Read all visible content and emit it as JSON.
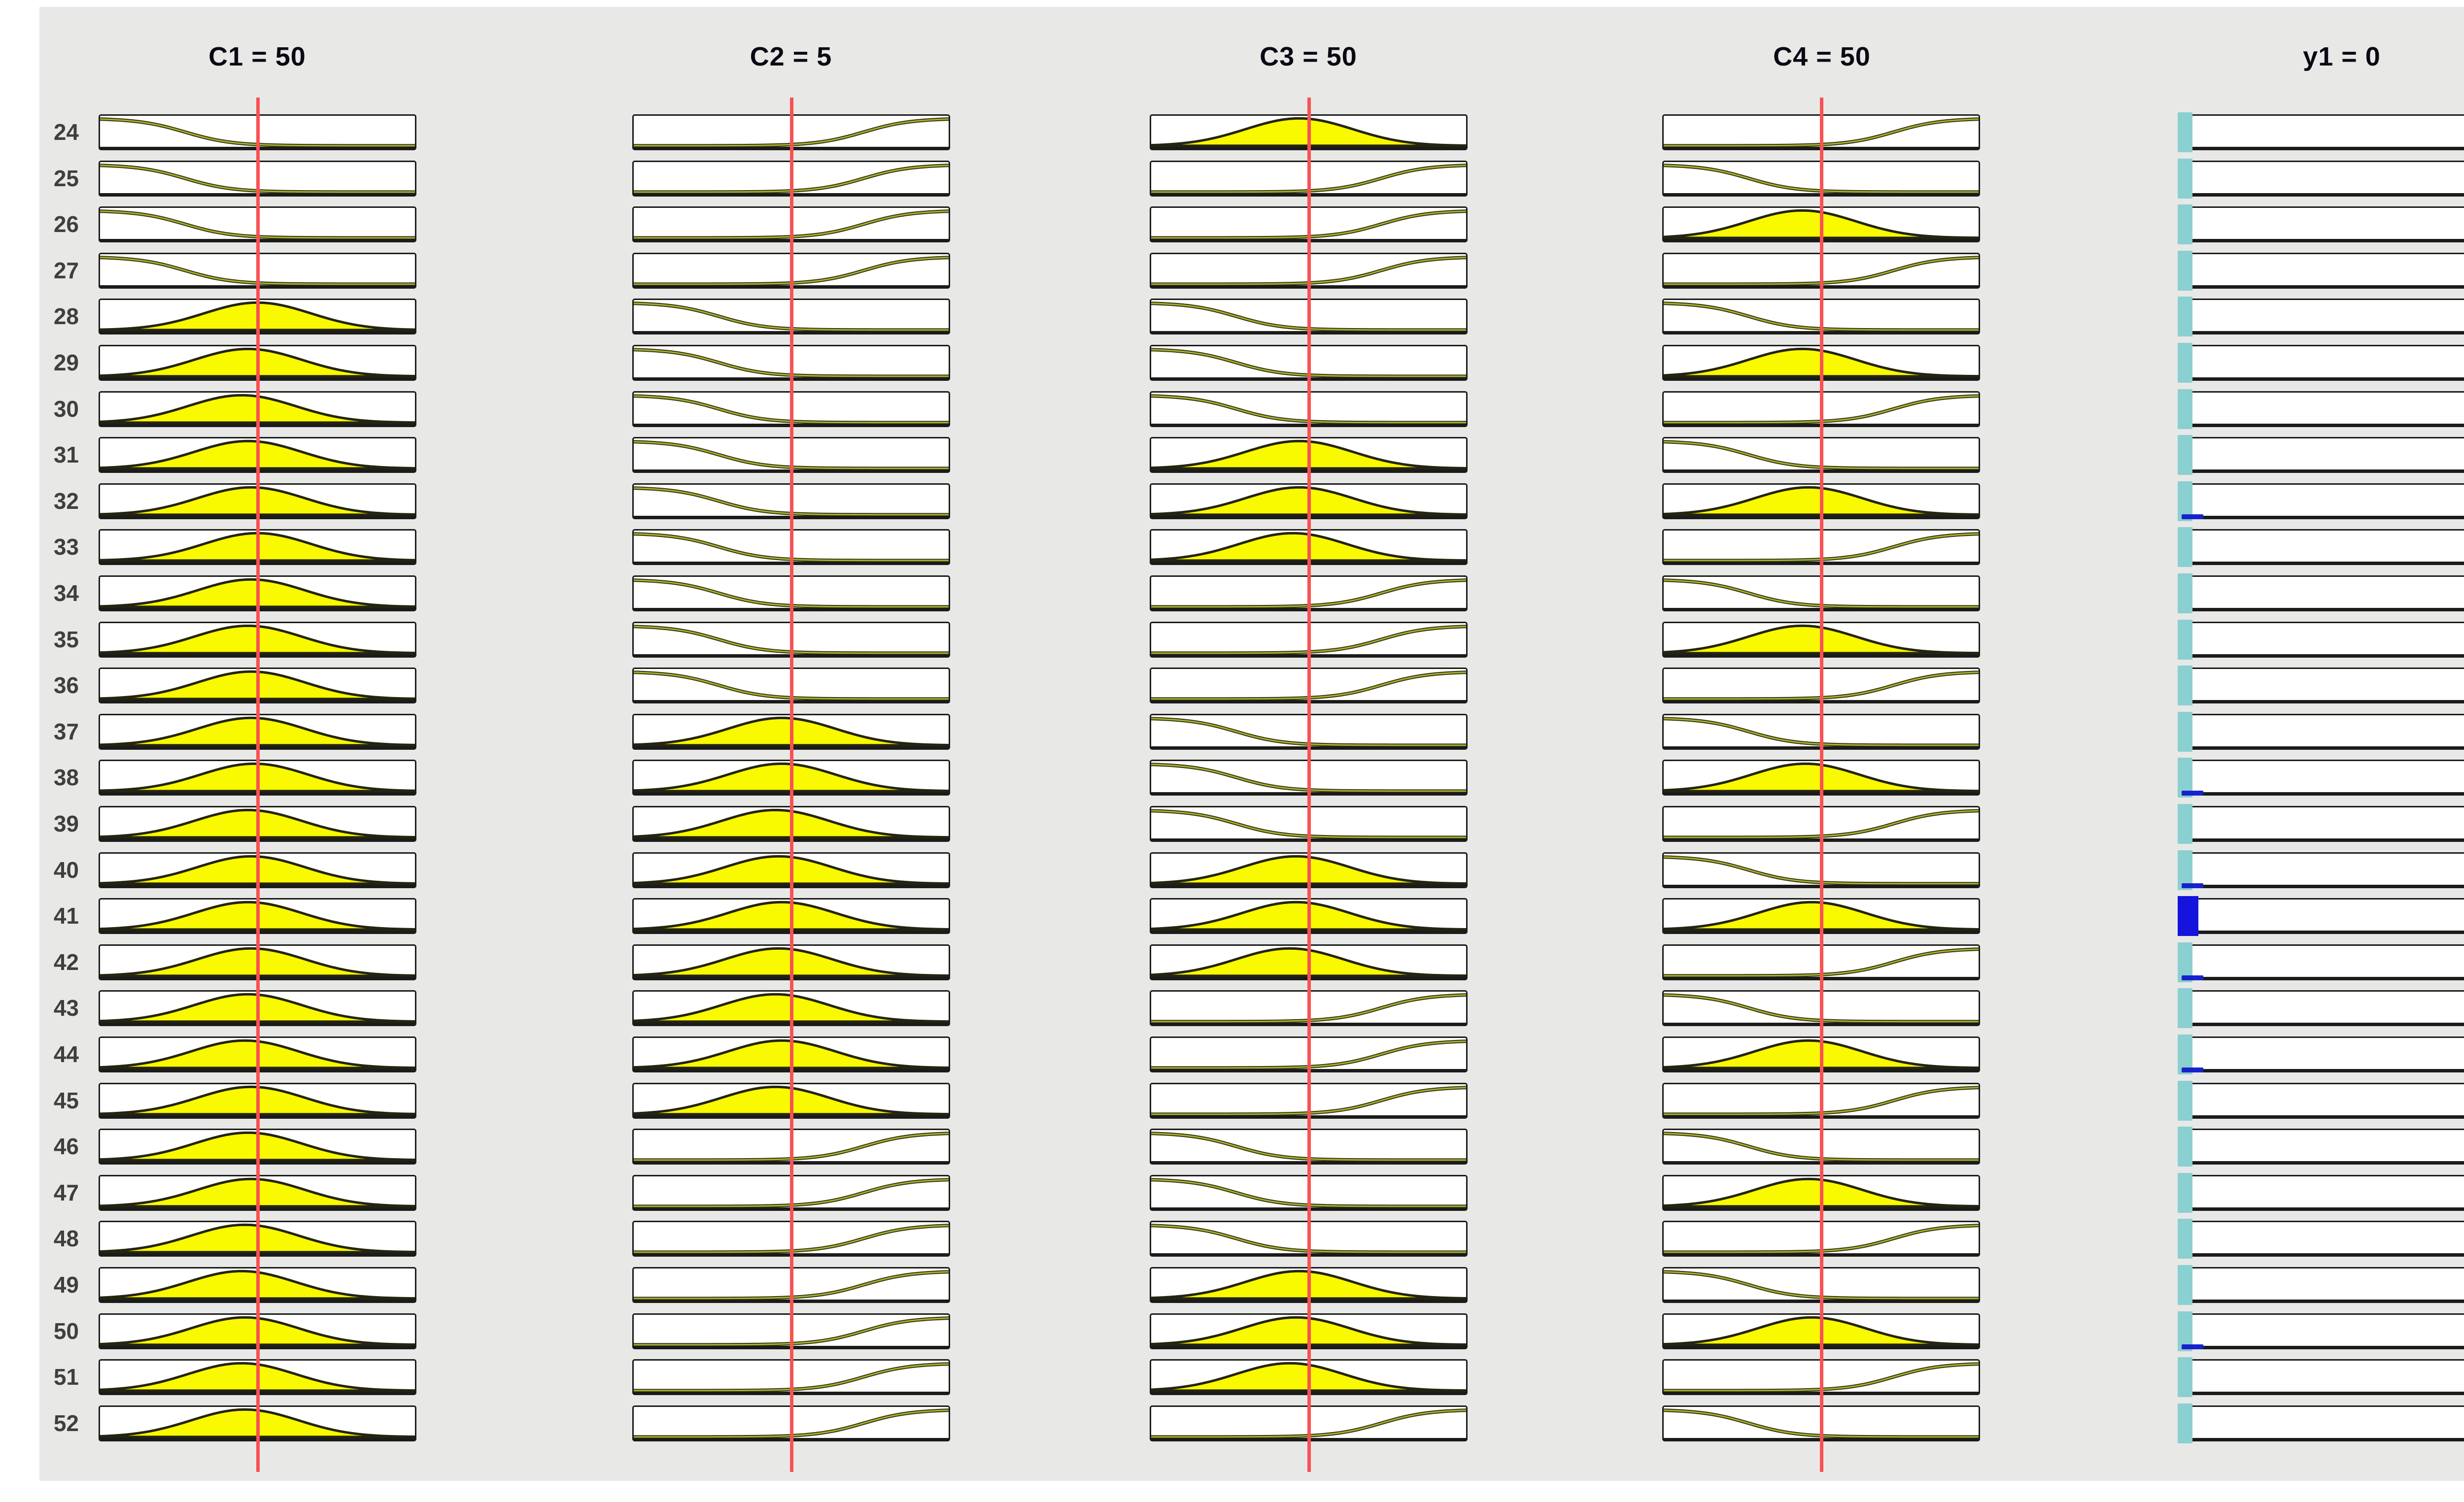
{
  "chart_data": {
    "type": "fuzzy-rule-viewer-strips",
    "description": "Rule viewer showing rules 24-52; each input cell shows a membership function (z = descending sigmoid, s = ascending sigmoid, bell = gaussian, filled yellow when activated); red vertical line marks the crisp input value; output column shows clipped activation bars",
    "rules": [
      24,
      25,
      26,
      27,
      28,
      29,
      30,
      31,
      32,
      33,
      34,
      35,
      36,
      37,
      38,
      39,
      40,
      41,
      42,
      43,
      44,
      45,
      46,
      47,
      48,
      49,
      50,
      51,
      52
    ],
    "columns": [
      {
        "kind": "input",
        "title": "C1 = 50",
        "name": "C1",
        "value": 50,
        "line_position": 0.5,
        "mf": [
          "z",
          "z",
          "z",
          "z",
          "bell",
          "bell",
          "bell",
          "bell",
          "bell",
          "bell",
          "bell",
          "bell",
          "bell",
          "bell",
          "bell",
          "bell",
          "bell",
          "bell",
          "bell",
          "bell",
          "bell",
          "bell",
          "bell",
          "bell",
          "bell",
          "bell",
          "bell",
          "bell",
          "bell"
        ],
        "centers": [
          null,
          null,
          null,
          null,
          0.5,
          0.47,
          0.45,
          0.47,
          0.48,
          0.5,
          0.48,
          0.47,
          0.48,
          0.48,
          0.49,
          0.47,
          0.48,
          0.47,
          0.48,
          0.47,
          0.46,
          0.48,
          0.47,
          0.48,
          0.46,
          0.45,
          0.46,
          0.45,
          0.46
        ]
      },
      {
        "kind": "input",
        "title": "C2 = 5",
        "name": "C2",
        "value": 5,
        "line_position": 0.5,
        "mf": [
          "s",
          "s",
          "s",
          "s",
          "z",
          "z",
          "z",
          "z",
          "z",
          "z",
          "z",
          "z",
          "z",
          "bell",
          "bell",
          "bell",
          "bell",
          "bell",
          "bell",
          "bell",
          "bell",
          "bell",
          "s",
          "s",
          "s",
          "s",
          "s",
          "s",
          "s"
        ],
        "centers": [
          null,
          null,
          null,
          null,
          null,
          null,
          null,
          null,
          null,
          null,
          null,
          null,
          null,
          0.47,
          0.47,
          0.45,
          0.46,
          0.47,
          0.46,
          0.45,
          0.47,
          0.45,
          null,
          null,
          null,
          null,
          null,
          null,
          null
        ]
      },
      {
        "kind": "input",
        "title": "C3 = 50",
        "name": "C3",
        "value": 50,
        "line_position": 0.5,
        "mf": [
          "bell",
          "s",
          "s",
          "s",
          "z",
          "z",
          "z",
          "bell",
          "bell",
          "bell",
          "s",
          "s",
          "s",
          "z",
          "z",
          "z",
          "bell",
          "bell",
          "bell",
          "s",
          "s",
          "s",
          "z",
          "z",
          "z",
          "bell",
          "bell",
          "bell",
          "s"
        ],
        "centers": [
          0.47,
          null,
          null,
          null,
          null,
          null,
          null,
          0.47,
          0.47,
          0.45,
          null,
          null,
          null,
          null,
          null,
          null,
          0.46,
          0.46,
          0.44,
          null,
          null,
          null,
          null,
          null,
          null,
          0.47,
          0.46,
          0.44,
          null
        ]
      },
      {
        "kind": "input",
        "title": "C4 = 50",
        "name": "C4",
        "value": 50,
        "line_position": 0.5,
        "mf": [
          "s",
          "z",
          "bell",
          "s",
          "z",
          "bell",
          "s",
          "z",
          "bell",
          "s",
          "z",
          "bell",
          "s",
          "z",
          "bell",
          "s",
          "z",
          "bell",
          "s",
          "z",
          "bell",
          "s",
          "z",
          "bell",
          "s",
          "z",
          "bell",
          "s",
          "z"
        ],
        "centers": [
          null,
          null,
          0.44,
          null,
          null,
          0.44,
          null,
          null,
          0.46,
          null,
          null,
          0.44,
          null,
          null,
          0.45,
          null,
          null,
          0.47,
          null,
          null,
          0.46,
          null,
          null,
          0.46,
          null,
          null,
          0.47,
          null,
          null
        ]
      },
      {
        "kind": "output",
        "title": "y1 = 0",
        "name": "y1",
        "value": 0,
        "bars": [
          "teal",
          "teal",
          "teal",
          "teal",
          "teal",
          "teal",
          "teal",
          "teal",
          "blue-tick",
          "teal",
          "teal",
          "teal",
          "teal",
          "teal",
          "blue-tick",
          "teal",
          "blue-tick",
          "blue",
          "blue-tick",
          "teal",
          "blue-tick",
          "teal",
          "teal",
          "teal",
          "teal",
          "teal",
          "blue-tick",
          "teal",
          "teal"
        ],
        "strong_rule": 41,
        "tick_rules": [
          32,
          38,
          40,
          42,
          44,
          50
        ]
      }
    ],
    "colors": {
      "panel_background": "#e8e8e6",
      "box_fill": "#ffffff",
      "box_border": "#1b1b1b",
      "curve_olive": "#a8b234",
      "curve_dark": "#35350e",
      "bell_fill": "#f9f900",
      "bell_stroke": "#242410",
      "red_line": "#f85252",
      "teal_bar": "#8ad0d0",
      "blue_bar": "#1414dd",
      "blue_tick": "#1722cc",
      "title_text": "#0a0a14",
      "label_text": "#3f3f3f"
    }
  }
}
